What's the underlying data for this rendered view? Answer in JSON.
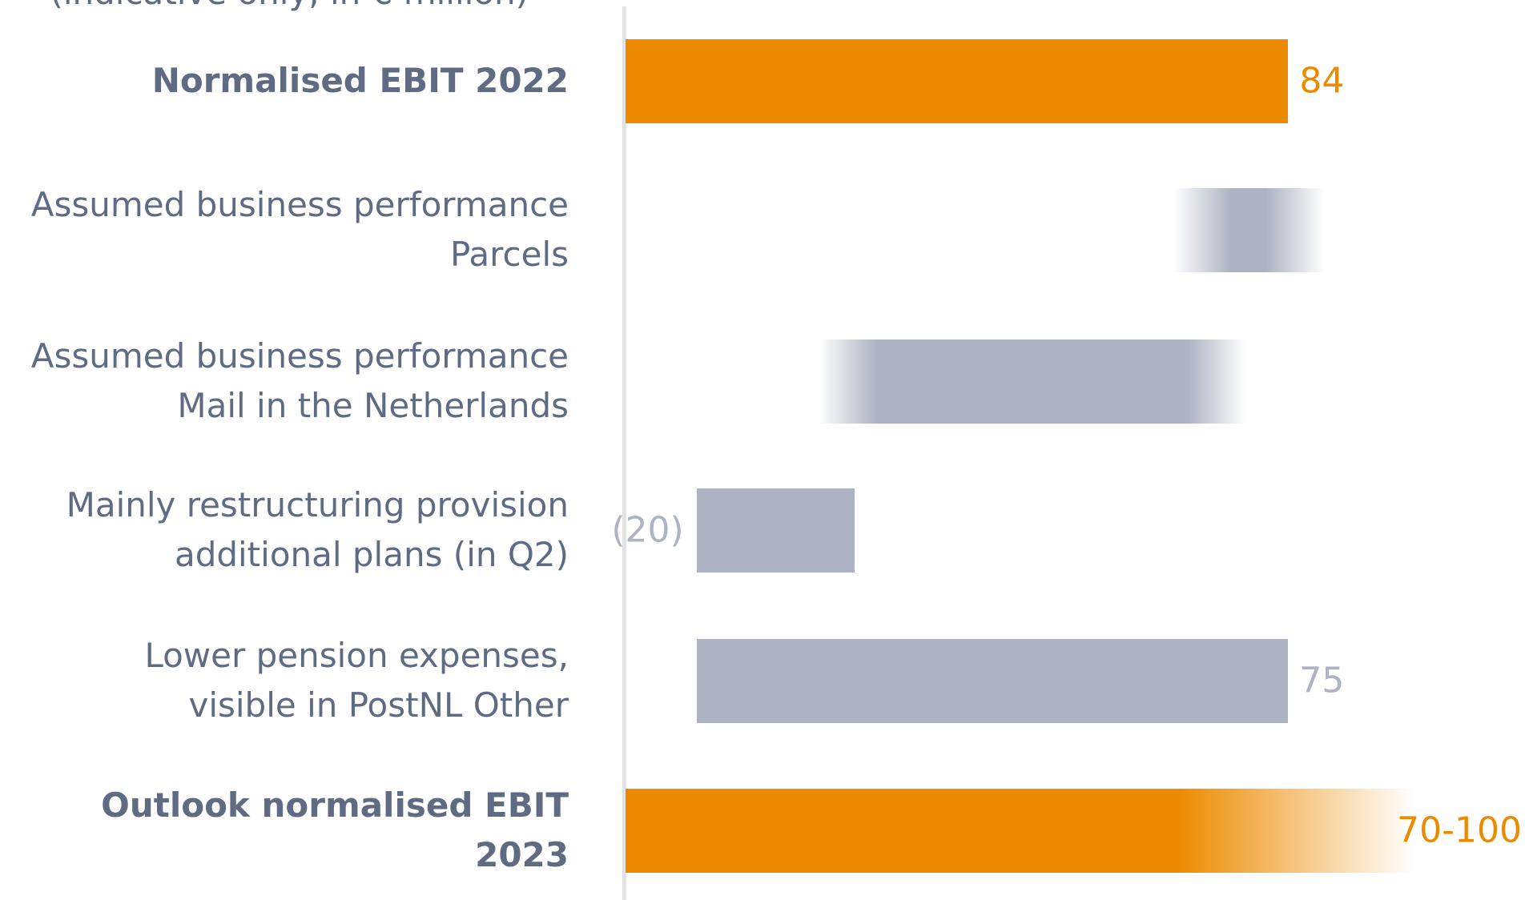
{
  "chart_data": {
    "type": "waterfall",
    "subtitle": "(indicative only, in € million)",
    "categories": [
      "Normalised EBIT 2022",
      "Assumed business performance \nParcels",
      "Assumed business performance \nMail in the Netherlands",
      "Mainly restructuring provision\nadditional plans (in Q2)",
      "Lower pension expenses, \nvisible in PostNL Other",
      "Outlook normalised EBIT 2023"
    ],
    "values": [
      84,
      -10,
      -45,
      -20,
      75,
      null
    ],
    "value_labels": [
      null,
      null,
      null,
      "(20)",
      null,
      null
    ],
    "labeled": [
      true,
      false,
      false,
      true,
      true,
      false
    ],
    "bar_styles": [
      "total",
      "fuzzy",
      "fuzzy",
      "step",
      "step",
      "range"
    ],
    "outlook": {
      "low": 70,
      "high": 100,
      "value_label": "70-100"
    },
    "total_color": "#ed8b00",
    "step_color": "#adb3c3",
    "xlim": [
      0,
      100
    ]
  }
}
